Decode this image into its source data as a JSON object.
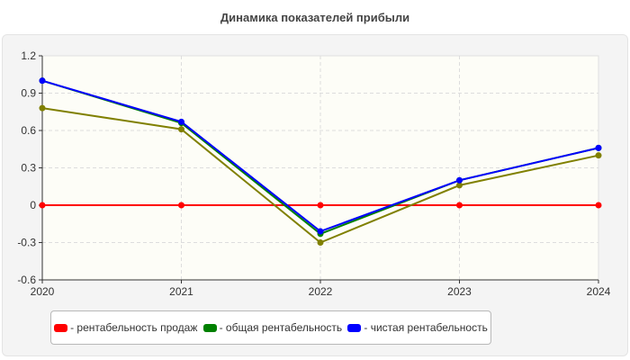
{
  "chart_data": {
    "type": "line",
    "title": "Динамика показателей прибыли",
    "categories": [
      "2020",
      "2021",
      "2022",
      "2023",
      "2024"
    ],
    "ylim": [
      -0.6,
      1.2
    ],
    "yticks": [
      "1.2",
      "0.9",
      "0.6",
      "0.3",
      "0",
      "-0.3",
      "-0.6"
    ],
    "grid": true,
    "legend_placement": "bottom",
    "series": [
      {
        "name": "- рентабельность продаж",
        "color": "#ff0000",
        "values": [
          0,
          0,
          0,
          0,
          0
        ]
      },
      {
        "name": "- общая рентабельность",
        "color": "#008000",
        "values": [
          1.0,
          0.66,
          -0.23,
          0.2,
          0.46
        ]
      },
      {
        "color": "#808000",
        "values": [
          0.78,
          0.61,
          -0.3,
          0.16,
          0.4
        ]
      },
      {
        "name": "- чистая рентабельность",
        "color": "#0000ff",
        "values": [
          1.0,
          0.67,
          -0.21,
          0.2,
          0.46
        ]
      }
    ]
  }
}
